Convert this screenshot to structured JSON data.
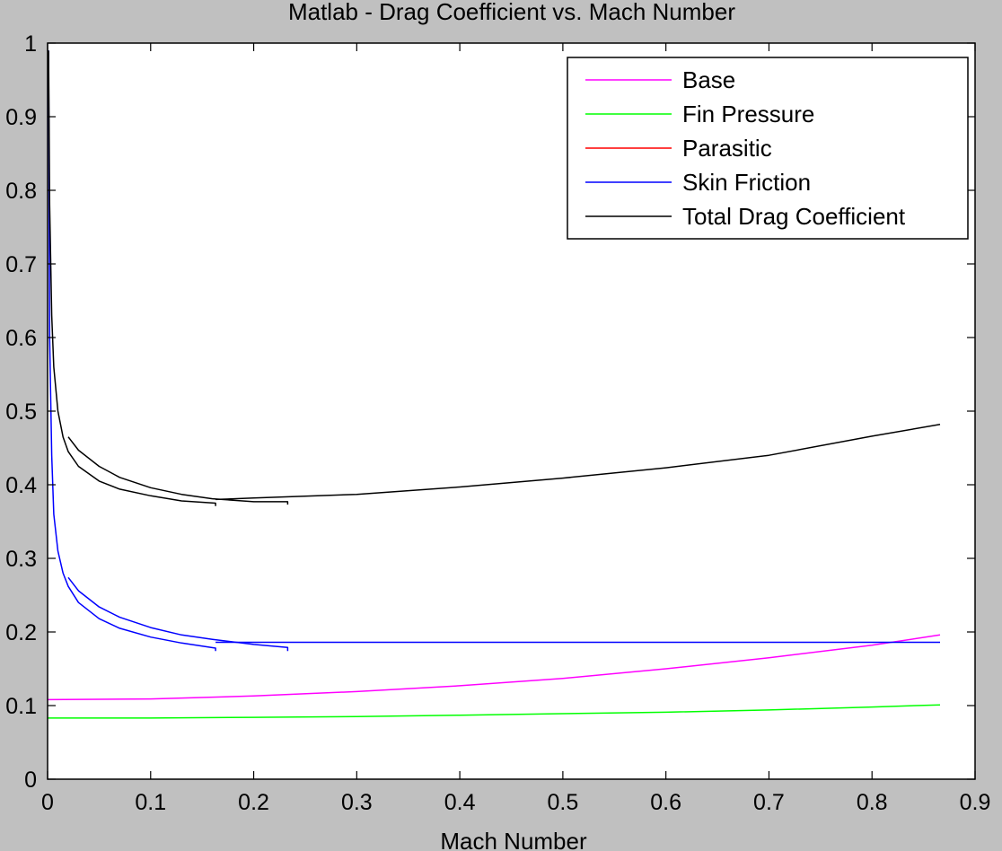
{
  "chart_data": {
    "type": "line",
    "title": "Matlab - Drag Coefficient vs. Mach Number",
    "xlabel": "Mach Number",
    "ylabel": "",
    "xlim": [
      0,
      0.9
    ],
    "ylim": [
      0,
      1
    ],
    "x_ticks": [
      "0",
      "0.1",
      "0.2",
      "0.3",
      "0.4",
      "0.5",
      "0.6",
      "0.7",
      "0.8",
      "0.9"
    ],
    "y_ticks": [
      "0",
      "0.1",
      "0.2",
      "0.3",
      "0.4",
      "0.5",
      "0.6",
      "0.7",
      "0.8",
      "0.9",
      "1"
    ],
    "grid": false,
    "legend_position": "top-right",
    "legend": [
      "Base",
      "Fin Pressure",
      "Parasitic",
      "Skin Friction",
      "Total Drag Coefficient"
    ],
    "series": [
      {
        "name": "Base",
        "color": "#ff00ff",
        "segments": [
          [
            [
              0.0,
              0.108
            ],
            [
              0.1,
              0.109
            ],
            [
              0.2,
              0.113
            ],
            [
              0.3,
              0.119
            ],
            [
              0.4,
              0.127
            ],
            [
              0.5,
              0.137
            ],
            [
              0.6,
              0.15
            ],
            [
              0.7,
              0.165
            ],
            [
              0.8,
              0.182
            ],
            [
              0.866,
              0.196
            ]
          ]
        ]
      },
      {
        "name": "Fin Pressure",
        "color": "#00ff00",
        "segments": [
          [
            [
              0.0,
              0.083
            ],
            [
              0.1,
              0.083
            ],
            [
              0.2,
              0.084
            ],
            [
              0.3,
              0.085
            ],
            [
              0.4,
              0.087
            ],
            [
              0.5,
              0.089
            ],
            [
              0.6,
              0.091
            ],
            [
              0.7,
              0.094
            ],
            [
              0.8,
              0.098
            ],
            [
              0.866,
              0.101
            ]
          ]
        ]
      },
      {
        "name": "Parasitic",
        "color": "#ff0000",
        "segments": []
      },
      {
        "name": "Skin Friction",
        "color": "#0000ff",
        "segments": [
          [
            [
              0.001,
              0.99
            ],
            [
              0.002,
              0.6
            ],
            [
              0.004,
              0.44
            ],
            [
              0.006,
              0.36
            ],
            [
              0.01,
              0.31
            ],
            [
              0.015,
              0.28
            ],
            [
              0.02,
              0.262
            ],
            [
              0.03,
              0.24
            ],
            [
              0.05,
              0.218
            ],
            [
              0.07,
              0.205
            ],
            [
              0.1,
              0.193
            ],
            [
              0.13,
              0.185
            ],
            [
              0.163,
              0.178
            ],
            [
              0.163,
              0.174
            ]
          ],
          [
            [
              0.02,
              0.274
            ],
            [
              0.03,
              0.256
            ],
            [
              0.05,
              0.234
            ],
            [
              0.07,
              0.22
            ],
            [
              0.1,
              0.206
            ],
            [
              0.13,
              0.196
            ],
            [
              0.16,
              0.19
            ],
            [
              0.2,
              0.183
            ],
            [
              0.233,
              0.179
            ],
            [
              0.233,
              0.174
            ]
          ],
          [
            [
              0.163,
              0.186
            ],
            [
              0.5,
              0.186
            ],
            [
              0.866,
              0.186
            ]
          ]
        ]
      },
      {
        "name": "Total Drag Coefficient",
        "color": "#000000",
        "segments": [
          [
            [
              0.001,
              0.99
            ],
            [
              0.002,
              0.78
            ],
            [
              0.004,
              0.63
            ],
            [
              0.006,
              0.56
            ],
            [
              0.01,
              0.5
            ],
            [
              0.015,
              0.465
            ],
            [
              0.02,
              0.445
            ],
            [
              0.03,
              0.425
            ],
            [
              0.05,
              0.405
            ],
            [
              0.07,
              0.394
            ],
            [
              0.1,
              0.385
            ],
            [
              0.13,
              0.378
            ],
            [
              0.163,
              0.375
            ],
            [
              0.163,
              0.371
            ]
          ],
          [
            [
              0.02,
              0.465
            ],
            [
              0.03,
              0.447
            ],
            [
              0.05,
              0.425
            ],
            [
              0.07,
              0.41
            ],
            [
              0.1,
              0.396
            ],
            [
              0.13,
              0.387
            ],
            [
              0.16,
              0.381
            ],
            [
              0.2,
              0.377
            ],
            [
              0.233,
              0.377
            ],
            [
              0.233,
              0.373
            ]
          ],
          [
            [
              0.163,
              0.38
            ],
            [
              0.2,
              0.382
            ],
            [
              0.3,
              0.387
            ],
            [
              0.4,
              0.397
            ],
            [
              0.5,
              0.409
            ],
            [
              0.6,
              0.423
            ],
            [
              0.7,
              0.44
            ],
            [
              0.8,
              0.466
            ],
            [
              0.866,
              0.482
            ]
          ]
        ]
      }
    ]
  }
}
